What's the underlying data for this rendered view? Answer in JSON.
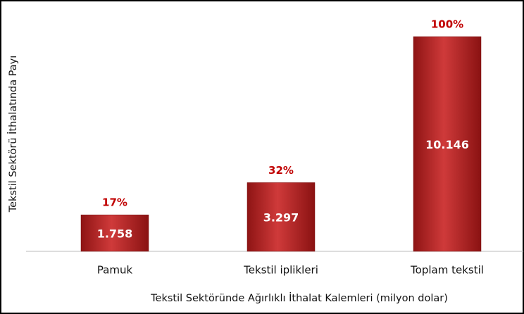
{
  "chart_data": {
    "type": "bar",
    "x_label": "Tekstil Sektöründe Ağırlıklı İthalat Kalemleri (milyon dolar)",
    "y_label": "Tekstil Sektörü İthalatında Payı",
    "categories": [
      "Pamuk",
      "Tekstil iplikleri",
      "Toplam tekstil"
    ],
    "values": [
      17,
      32,
      100
    ],
    "value_labels": [
      "17%",
      "32%",
      "100%"
    ],
    "amounts": [
      1758,
      3297,
      10146
    ],
    "amount_labels": [
      "1.758",
      "3.297",
      "10.146"
    ],
    "color": "#b22222",
    "ylim": [
      0,
      100
    ]
  }
}
